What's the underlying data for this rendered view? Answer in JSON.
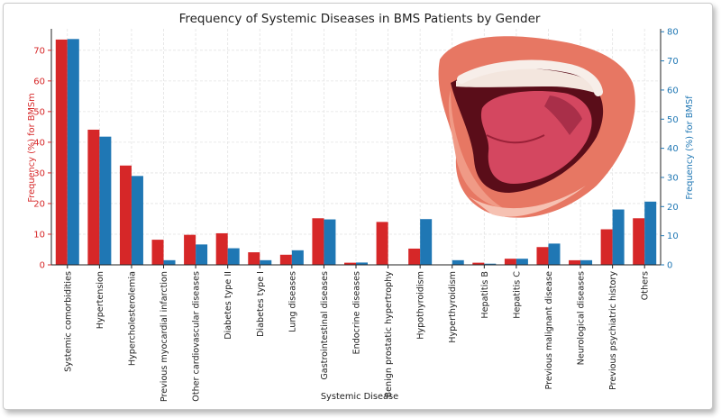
{
  "chart_data": {
    "type": "bar",
    "title": "Frequency of Systemic Diseases in BMS Patients by Gender",
    "xlabel": "Systemic Disease",
    "categories": [
      "Systemic comorbidities",
      "Hypertension",
      "Hypercholesterolemia",
      "Previous myocardial infarction",
      "Other cardiovascular diseases",
      "Diabetes type II",
      "Diabetes type I",
      "Lung diseases",
      "Gastrointestinal diseases",
      "Endocrine diseases",
      "Benign prostatic hypertrophy",
      "Hypothyroidism",
      "Hyperthyroidism",
      "Hepatitis B",
      "Hepatitis C",
      "Previous malignant disease",
      "Neurological diseases",
      "Previous psychiatric history",
      "Others"
    ],
    "series": [
      {
        "name": "BMSm",
        "axis": "left",
        "color": "#d62728",
        "ylabel": "Frequency (%) for BMSm",
        "ylim": [
          0,
          77
        ],
        "ticks": [
          0,
          10,
          20,
          30,
          40,
          50,
          60,
          70
        ],
        "values": [
          73.5,
          44.1,
          32.4,
          8.2,
          9.8,
          10.3,
          4.1,
          3.3,
          15.2,
          0.7,
          14.0,
          5.3,
          0.0,
          0.7,
          2.0,
          5.8,
          1.5,
          11.6,
          15.2
        ]
      },
      {
        "name": "BMSf",
        "axis": "right",
        "color": "#1f77b4",
        "ylabel": "Frequency (%) for BMSf",
        "ylim": [
          0,
          81
        ],
        "ticks": [
          0,
          10,
          20,
          30,
          40,
          50,
          60,
          70,
          80
        ],
        "values": [
          77.5,
          44.0,
          30.5,
          1.6,
          7.0,
          5.7,
          1.6,
          5.0,
          15.6,
          0.8,
          0.0,
          15.7,
          1.6,
          0.4,
          2.1,
          7.3,
          1.6,
          19.0,
          21.7
        ]
      }
    ],
    "grid": true,
    "overlay": "open-mouth-illustration"
  }
}
